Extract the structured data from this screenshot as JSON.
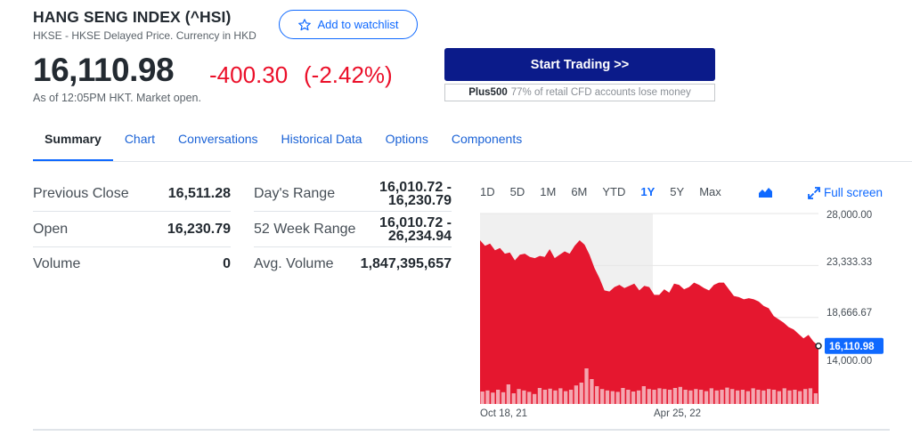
{
  "header": {
    "title": "HANG SENG INDEX (^HSI)",
    "subtitle": "HKSE - HKSE Delayed Price. Currency in HKD",
    "watchlist_label": "Add to watchlist"
  },
  "quote": {
    "price": "16,110.98",
    "change": "-400.30",
    "change_pct": "(-2.42%)",
    "as_of": "As of 12:05PM HKT. Market open."
  },
  "promo": {
    "button": "Start Trading >>",
    "brand": "Plus500",
    "disclaimer": "77% of retail CFD accounts lose money"
  },
  "tabs": [
    "Summary",
    "Chart",
    "Conversations",
    "Historical Data",
    "Options",
    "Components"
  ],
  "stats_left": [
    {
      "label": "Previous Close",
      "value": "16,511.28"
    },
    {
      "label": "Open",
      "value": "16,230.79"
    },
    {
      "label": "Volume",
      "value": "0"
    }
  ],
  "stats_right": [
    {
      "label": "Day's Range",
      "value_line1": "16,010.72 -",
      "value_line2": "16,230.79"
    },
    {
      "label": "52 Week Range",
      "value_line1": "16,010.72 -",
      "value_line2": "26,234.94"
    },
    {
      "label": "Avg. Volume",
      "value_line1": "1,847,395,657",
      "value_line2": ""
    }
  ],
  "chart_controls": {
    "ranges": [
      "1D",
      "5D",
      "1M",
      "6M",
      "YTD",
      "1Y",
      "5Y",
      "Max"
    ],
    "active_range": "1Y",
    "fullscreen_label": "Full screen",
    "chart_type_icon": "mountain-chart-icon",
    "fullscreen_icon": "expand-arrow-icon"
  },
  "colors": {
    "accent": "#0f69ff",
    "down": "#eb0f29",
    "trade_button": "#0b1b8a",
    "volume": "#f4a6b0"
  },
  "chart_data": {
    "type": "area",
    "y_ticks": [
      "28,000.00",
      "23,333.33",
      "18,666.67",
      "14,000.00"
    ],
    "ylim": [
      10900,
      28000
    ],
    "x_ticks": [
      "Oct 18, 21",
      "Apr 25, 22"
    ],
    "current_label": "16,110.98",
    "series": [
      {
        "values": [
          25600,
          25100,
          25300,
          24700,
          24900,
          24400,
          24500,
          23800,
          24300,
          24400,
          24100,
          24000,
          24200,
          24100,
          24800,
          24000,
          24300,
          24600,
          24400,
          25100,
          25600,
          25200,
          24300,
          23100,
          22200,
          21100,
          21000,
          21400,
          21600,
          21300,
          21500,
          21700,
          21100,
          21500,
          21400,
          20700,
          20700,
          21200,
          20900,
          21700,
          21600,
          21200,
          21400,
          21800,
          21600,
          21300,
          21100,
          21600,
          21800,
          21800,
          21200,
          20600,
          20500,
          20300,
          20400,
          20300,
          20100,
          19700,
          19500,
          18800,
          18500,
          18200,
          17800,
          17600,
          17200,
          16800,
          17100,
          16500,
          16110.98
        ]
      }
    ],
    "volume_relative": [
      0.35,
      0.38,
      0.32,
      0.4,
      0.33,
      0.55,
      0.3,
      0.42,
      0.38,
      0.34,
      0.28,
      0.45,
      0.4,
      0.43,
      0.38,
      0.44,
      0.36,
      0.4,
      0.52,
      0.6,
      1.0,
      0.7,
      0.5,
      0.42,
      0.38,
      0.36,
      0.34,
      0.45,
      0.4,
      0.35,
      0.38,
      0.5,
      0.42,
      0.4,
      0.44,
      0.42,
      0.4,
      0.45,
      0.48,
      0.4,
      0.38,
      0.42,
      0.4,
      0.36,
      0.44,
      0.38,
      0.4,
      0.46,
      0.42,
      0.38,
      0.4,
      0.36,
      0.44,
      0.4,
      0.38,
      0.42,
      0.4,
      0.36,
      0.44,
      0.38,
      0.4,
      0.36,
      0.42,
      0.44,
      0.3
    ]
  }
}
